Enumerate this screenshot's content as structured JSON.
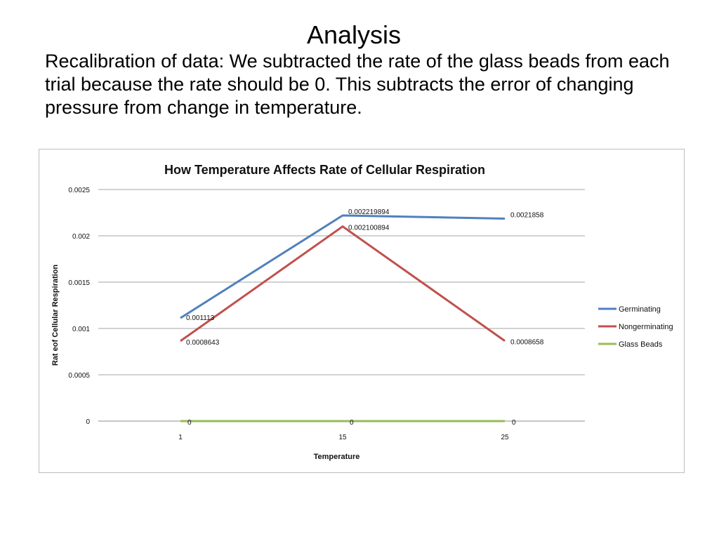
{
  "slide": {
    "title": "Analysis",
    "body": "Recalibration of data: We subtracted the rate of the glass beads from each trial because the rate should be 0. This subtracts the error of changing pressure from change in temperature."
  },
  "chart_data": {
    "type": "line",
    "title": "How Temperature Affects Rate of Cellular Respiration",
    "xlabel": "Temperature",
    "ylabel": "Rat eof Cellular Respiration",
    "categories": [
      "1",
      "15",
      "25"
    ],
    "ylim": [
      0,
      0.0025
    ],
    "yticks": [
      0,
      0.0005,
      0.001,
      0.0015,
      0.002,
      0.0025
    ],
    "ytick_labels": [
      "0",
      "0.0005",
      "0.001",
      "0.0015",
      "0.002",
      "0.0025"
    ],
    "grid": true,
    "legend_position": "right",
    "series": [
      {
        "name": "Germinating",
        "color": "#4f81bd",
        "values": [
          0.001113,
          0.002219894,
          0.0021858
        ],
        "labels": [
          "0.001113",
          "0.002219894",
          "0.0021858"
        ]
      },
      {
        "name": "Nongerminating",
        "color": "#c0504d",
        "values": [
          0.0008643,
          0.002100894,
          0.0008658
        ],
        "labels": [
          "0.0008643",
          "0.002100894",
          "0.0008658"
        ]
      },
      {
        "name": "Glass Beads",
        "color": "#9bbb59",
        "values": [
          0,
          0,
          0
        ],
        "labels": [
          "0",
          "0",
          "0"
        ]
      }
    ]
  }
}
